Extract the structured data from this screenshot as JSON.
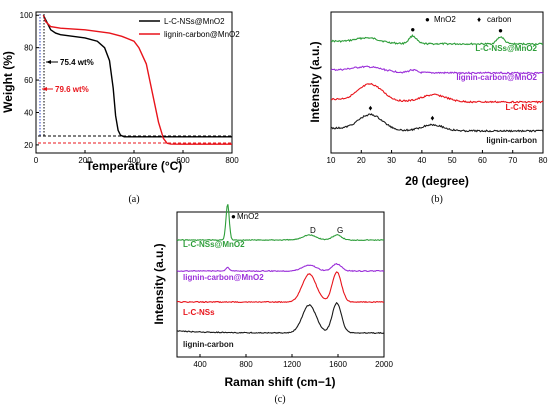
{
  "chart_data": [
    {
      "type": "line",
      "caption": "(a)",
      "xlabel": "Temperature (°C)",
      "ylabel": "Weight (%)",
      "xlim": [
        0,
        800
      ],
      "ylim": [
        15,
        102
      ],
      "xticks": [
        "0",
        "200",
        "400",
        "600",
        "800"
      ],
      "yticks": [
        "20",
        "40",
        "60",
        "80",
        "100"
      ],
      "legend_position": "top-right",
      "series": [
        {
          "name": "L-C-NSs@MnO2",
          "color": "#000000",
          "x": [
            30,
            40,
            60,
            80,
            100,
            150,
            200,
            250,
            280,
            300,
            315,
            325,
            335,
            345,
            360,
            400,
            500,
            600,
            700,
            800
          ],
          "y": [
            100,
            97,
            91,
            89,
            88,
            87,
            86,
            84,
            80,
            72,
            55,
            38,
            29,
            26,
            25,
            25,
            25,
            25,
            25,
            25
          ]
        },
        {
          "name": "lignin-carbon@MnO2",
          "color": "#e8141b",
          "x": [
            30,
            40,
            60,
            100,
            200,
            300,
            350,
            400,
            420,
            450,
            475,
            500,
            520,
            535,
            550,
            600,
            700,
            800
          ],
          "y": [
            100,
            96,
            93,
            92,
            91,
            89,
            87,
            84,
            80,
            70,
            52,
            34,
            24,
            21,
            20.5,
            20.4,
            20.4,
            20.4
          ]
        }
      ],
      "annotations": [
        {
          "text": "75.4 wt%",
          "color": "#000000"
        },
        {
          "text": "79.6 wt%",
          "color": "#e8141b"
        }
      ]
    },
    {
      "type": "line",
      "caption": "(b)",
      "xlabel": "2θ (degree)",
      "ylabel": "Intensity (a.u.)",
      "xlim": [
        10,
        80
      ],
      "xticks": [
        "10",
        "20",
        "30",
        "40",
        "50",
        "60",
        "70",
        "80"
      ],
      "legend": [
        {
          "marker": "●",
          "label": "MnO2"
        },
        {
          "marker": "♦",
          "label": "carbon"
        }
      ],
      "series": [
        {
          "name": "L-C-NSs@MnO2",
          "color": "#2e9e3a",
          "offset": 3,
          "features": [
            [
              22,
              0.18,
              4
            ],
            [
              37,
              0.28,
              1.2
            ],
            [
              66,
              0.25,
              1.2
            ]
          ]
        },
        {
          "name": "lignin-carbon@MnO2",
          "color": "#9b30d9",
          "offset": 2,
          "features": [
            [
              22,
              0.18,
              5
            ],
            [
              37,
              0.1,
              1.2
            ]
          ]
        },
        {
          "name": "L-C-NSs",
          "color": "#e8141b",
          "offset": 1,
          "features": [
            [
              23,
              0.6,
              4
            ],
            [
              44,
              0.25,
              4
            ]
          ]
        },
        {
          "name": "lignin-carbon",
          "color": "#1a1a1a",
          "offset": 0,
          "features": [
            [
              23,
              0.55,
              4
            ],
            [
              43.5,
              0.22,
              3.5
            ]
          ]
        }
      ],
      "markers": [
        {
          "symbol": "♦",
          "x": 23,
          "series": "lignin-carbon"
        },
        {
          "symbol": "♦",
          "x": 43.5,
          "series": "lignin-carbon"
        },
        {
          "symbol": "●",
          "x": 37,
          "series": "L-C-NSs@MnO2"
        },
        {
          "symbol": "●",
          "x": 66,
          "series": "L-C-NSs@MnO2"
        }
      ]
    },
    {
      "type": "line",
      "caption": "(c)",
      "xlabel": "Raman shift (cm−1)",
      "ylabel": "Intensity (a.u.)",
      "xlim": [
        200,
        2000
      ],
      "xticks": [
        "400",
        "800",
        "1200",
        "1600",
        "2000"
      ],
      "series": [
        {
          "name": "L-C-NSs@MnO2",
          "color": "#2e9e3a",
          "offset": 3,
          "features": [
            [
              640,
              1.8,
              14
            ],
            [
              1350,
              0.25,
              60
            ],
            [
              1590,
              0.25,
              40
            ]
          ]
        },
        {
          "name": "lignin-carbon@MnO2",
          "color": "#9b30d9",
          "offset": 2,
          "features": [
            [
              640,
              0.2,
              14
            ],
            [
              1350,
              0.3,
              60
            ],
            [
              1590,
              0.35,
              40
            ]
          ]
        },
        {
          "name": "L-C-NSs",
          "color": "#e8141b",
          "offset": 1,
          "features": [
            [
              1350,
              1.4,
              60
            ],
            [
              1590,
              1.5,
              40
            ]
          ]
        },
        {
          "name": "lignin-carbon",
          "color": "#1a1a1a",
          "offset": 0,
          "features": [
            [
              1350,
              1.4,
              60
            ],
            [
              1590,
              1.5,
              40
            ]
          ]
        }
      ],
      "annotations": [
        {
          "text": "MnO2",
          "marker": "●",
          "x": 640
        },
        {
          "text": "D",
          "x": 1350
        },
        {
          "text": "G",
          "x": 1590
        }
      ]
    }
  ]
}
